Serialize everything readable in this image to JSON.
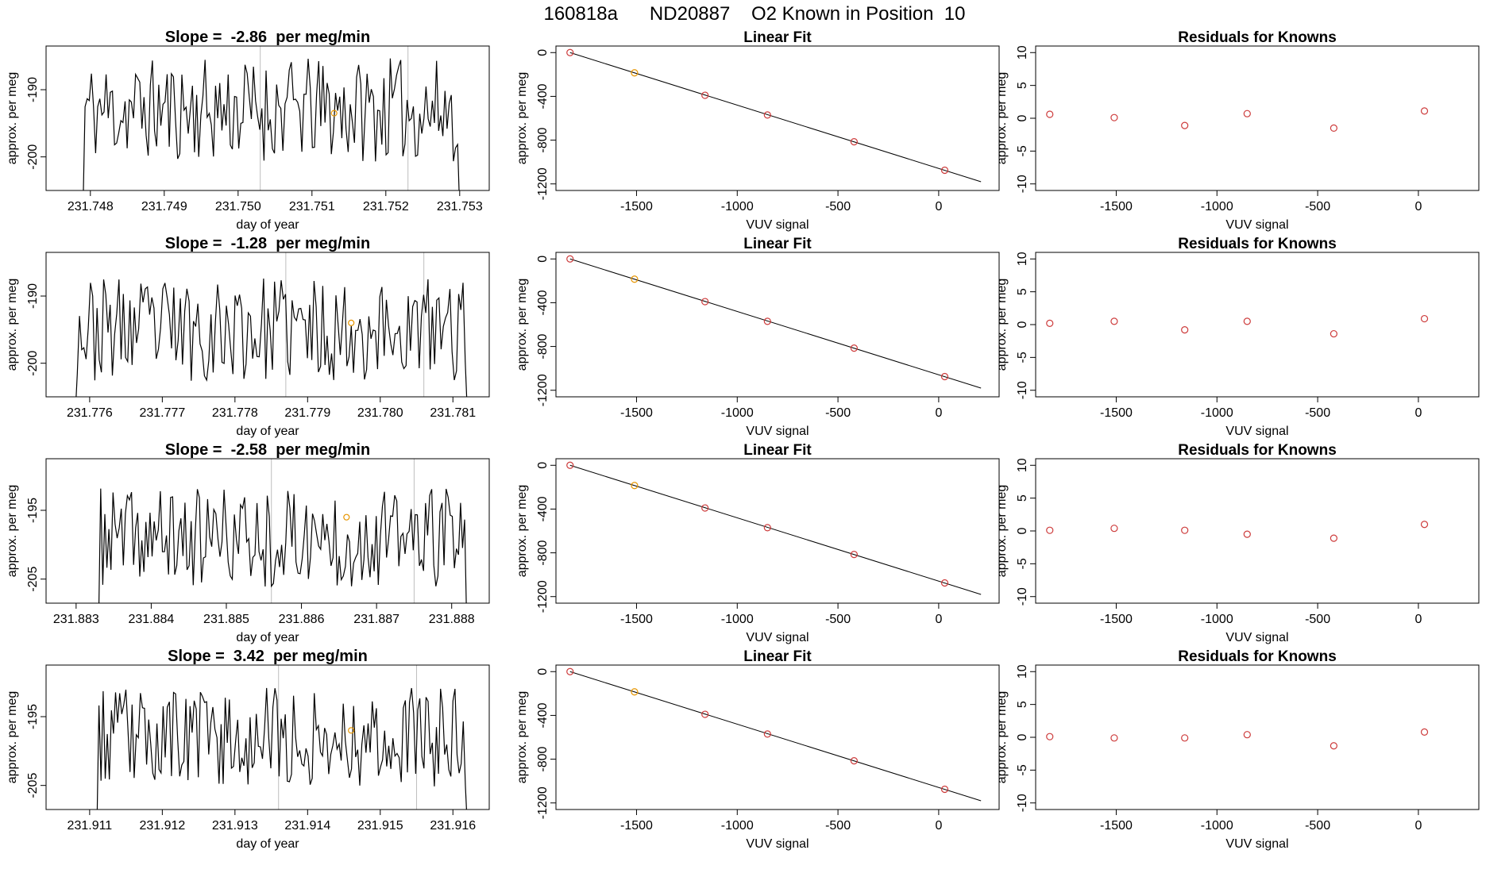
{
  "figure_title": "160818a      ND20887    O2 Known in Position  10",
  "colors": {
    "trace": "#000000",
    "frame": "#000000",
    "guide_line": "#bebebe",
    "fit_line": "#000000",
    "point_red": "#cd3b3b",
    "point_orange": "#e69500",
    "residual": "#cd3b3b"
  },
  "chart_data": [
    {
      "row": 1,
      "time_series": {
        "type": "line",
        "title": "Slope =  -2.86  per meg/min",
        "xlabel": "day of year",
        "ylabel": "approx. per meg",
        "xlim": [
          231.7474,
          231.7534
        ],
        "ylim": [
          -205,
          -183.5
        ],
        "xticks": [
          "231.748",
          "231.749",
          "231.750",
          "231.751",
          "231.752",
          "231.753"
        ],
        "yticks": [
          "-190",
          "-200"
        ],
        "x_start": 231.7479,
        "x_end": 231.753,
        "mean": -193,
        "amplitude": 4.8,
        "seed": 11,
        "vertical_lines": [
          231.7503,
          231.7523
        ],
        "marker": {
          "x": 231.7513,
          "y": -193.5
        }
      },
      "linear_fit": {
        "type": "scatter",
        "title": "Linear Fit",
        "xlabel": "VUV signal",
        "ylabel": "approx. per meg",
        "xlim": [
          -1900,
          300
        ],
        "ylim": [
          -1260,
          60
        ],
        "xticks": [
          "-1500",
          "-1000",
          "-500",
          "0"
        ],
        "yticks": [
          "0",
          "-400",
          "-800",
          "-1200"
        ],
        "fit_line": {
          "x": [
            -1830,
            210
          ],
          "y": [
            0,
            -1180
          ]
        },
        "points": [
          {
            "x": -1830,
            "y": 0
          },
          {
            "x": -1510,
            "y": -185
          },
          {
            "x": -1160,
            "y": -390
          },
          {
            "x": -850,
            "y": -570
          },
          {
            "x": -420,
            "y": -815
          },
          {
            "x": 30,
            "y": -1075
          }
        ],
        "highlight_index": 1
      },
      "residuals": {
        "type": "scatter",
        "title": "Residuals for Knowns",
        "xlabel": "VUV signal",
        "ylabel": "approx. per meg",
        "xlim": [
          -1900,
          300
        ],
        "ylim": [
          -11,
          11
        ],
        "xticks": [
          "-1500",
          "-1000",
          "-500",
          "0"
        ],
        "yticks": [
          "10",
          "5",
          "0",
          "-5",
          "-10"
        ],
        "x": [
          -1830,
          -1510,
          -1160,
          -850,
          -420,
          30
        ],
        "y": [
          0.6,
          0.1,
          -1.1,
          0.7,
          -1.5,
          1.1
        ]
      }
    },
    {
      "row": 2,
      "time_series": {
        "type": "line",
        "title": "Slope =  -1.28  per meg/min",
        "xlabel": "day of year",
        "ylabel": "approx. per meg",
        "xlim": [
          231.7754,
          231.7815
        ],
        "ylim": [
          -205,
          -183.5
        ],
        "xticks": [
          "231.776",
          "231.777",
          "231.778",
          "231.779",
          "231.780",
          "231.781"
        ],
        "yticks": [
          "-190",
          "-200"
        ],
        "x_start": 231.7758,
        "x_end": 231.7812,
        "mean": -195,
        "amplitude": 4.8,
        "seed": 23,
        "vertical_lines": [
          231.7787,
          231.7806
        ],
        "marker": {
          "x": 231.7796,
          "y": -194
        }
      },
      "linear_fit": {
        "type": "scatter",
        "title": "Linear Fit",
        "xlabel": "VUV signal",
        "ylabel": "approx. per meg",
        "xlim": [
          -1900,
          300
        ],
        "ylim": [
          -1260,
          60
        ],
        "xticks": [
          "-1500",
          "-1000",
          "-500",
          "0"
        ],
        "yticks": [
          "0",
          "-400",
          "-800",
          "-1200"
        ],
        "fit_line": {
          "x": [
            -1830,
            210
          ],
          "y": [
            0,
            -1180
          ]
        },
        "points": [
          {
            "x": -1830,
            "y": 0
          },
          {
            "x": -1510,
            "y": -185
          },
          {
            "x": -1160,
            "y": -390
          },
          {
            "x": -850,
            "y": -570
          },
          {
            "x": -420,
            "y": -815
          },
          {
            "x": 30,
            "y": -1075
          }
        ],
        "highlight_index": 1
      },
      "residuals": {
        "type": "scatter",
        "title": "Residuals for Knowns",
        "xlabel": "VUV signal",
        "ylabel": "approx. per meg",
        "xlim": [
          -1900,
          300
        ],
        "ylim": [
          -11,
          11
        ],
        "xticks": [
          "-1500",
          "-1000",
          "-500",
          "0"
        ],
        "yticks": [
          "10",
          "5",
          "0",
          "-5",
          "-10"
        ],
        "x": [
          -1830,
          -1510,
          -1160,
          -850,
          -420,
          30
        ],
        "y": [
          0.2,
          0.5,
          -0.8,
          0.5,
          -1.4,
          0.9
        ]
      }
    },
    {
      "row": 3,
      "time_series": {
        "type": "line",
        "title": "Slope =  -2.58  per meg/min",
        "xlabel": "day of year",
        "ylabel": "approx. per meg",
        "xlim": [
          231.8826,
          231.8885
        ],
        "ylim": [
          -208.5,
          -187.5
        ],
        "xticks": [
          "231.883",
          "231.884",
          "231.885",
          "231.886",
          "231.887",
          "231.888"
        ],
        "yticks": [
          "-195",
          "-205"
        ],
        "x_start": 231.8833,
        "x_end": 231.8882,
        "mean": -199,
        "amplitude": 4.5,
        "seed": 37,
        "vertical_lines": [
          231.8856,
          231.8875
        ],
        "marker": {
          "x": 231.8866,
          "y": -196
        }
      },
      "linear_fit": {
        "type": "scatter",
        "title": "Linear Fit",
        "xlabel": "VUV signal",
        "ylabel": "approx. per meg",
        "xlim": [
          -1900,
          300
        ],
        "ylim": [
          -1260,
          60
        ],
        "xticks": [
          "-1500",
          "-1000",
          "-500",
          "0"
        ],
        "yticks": [
          "0",
          "-400",
          "-800",
          "-1200"
        ],
        "fit_line": {
          "x": [
            -1830,
            210
          ],
          "y": [
            0,
            -1180
          ]
        },
        "points": [
          {
            "x": -1830,
            "y": 0
          },
          {
            "x": -1510,
            "y": -185
          },
          {
            "x": -1160,
            "y": -390
          },
          {
            "x": -850,
            "y": -570
          },
          {
            "x": -420,
            "y": -815
          },
          {
            "x": 30,
            "y": -1075
          }
        ],
        "highlight_index": 1
      },
      "residuals": {
        "type": "scatter",
        "title": "Residuals for Knowns",
        "xlabel": "VUV signal",
        "ylabel": "approx. per meg",
        "xlim": [
          -1900,
          300
        ],
        "ylim": [
          -11,
          11
        ],
        "xticks": [
          "-1500",
          "-1000",
          "-500",
          "0"
        ],
        "yticks": [
          "10",
          "5",
          "0",
          "-5",
          "-10"
        ],
        "x": [
          -1830,
          -1510,
          -1160,
          -850,
          -420,
          30
        ],
        "y": [
          0.1,
          0.4,
          0.1,
          -0.5,
          -1.1,
          1.0
        ]
      }
    },
    {
      "row": 4,
      "time_series": {
        "type": "line",
        "title": "Slope =  3.42  per meg/min",
        "xlabel": "day of year",
        "ylabel": "approx. per meg",
        "xlim": [
          231.9104,
          231.9165
        ],
        "ylim": [
          -208.5,
          -187.5
        ],
        "xticks": [
          "231.911",
          "231.912",
          "231.913",
          "231.914",
          "231.915",
          "231.916"
        ],
        "yticks": [
          "-195",
          "-205"
        ],
        "x_start": 231.9111,
        "x_end": 231.9162,
        "mean": -198,
        "amplitude": 4.5,
        "seed": 53,
        "vertical_lines": [
          231.9136,
          231.9155
        ],
        "marker": {
          "x": 231.9146,
          "y": -197
        }
      },
      "linear_fit": {
        "type": "scatter",
        "title": "Linear Fit",
        "xlabel": "VUV signal",
        "ylabel": "approx. per meg",
        "xlim": [
          -1900,
          300
        ],
        "ylim": [
          -1260,
          60
        ],
        "xticks": [
          "-1500",
          "-1000",
          "-500",
          "0"
        ],
        "yticks": [
          "0",
          "-400",
          "-800",
          "-1200"
        ],
        "fit_line": {
          "x": [
            -1830,
            210
          ],
          "y": [
            0,
            -1180
          ]
        },
        "points": [
          {
            "x": -1830,
            "y": 0
          },
          {
            "x": -1510,
            "y": -185
          },
          {
            "x": -1160,
            "y": -390
          },
          {
            "x": -850,
            "y": -570
          },
          {
            "x": -420,
            "y": -815
          },
          {
            "x": 30,
            "y": -1075
          }
        ],
        "highlight_index": 1
      },
      "residuals": {
        "type": "scatter",
        "title": "Residuals for Knowns",
        "xlabel": "VUV signal",
        "ylabel": "approx. per meg",
        "xlim": [
          -1900,
          300
        ],
        "ylim": [
          -11,
          11
        ],
        "xticks": [
          "-1500",
          "-1000",
          "-500",
          "0"
        ],
        "yticks": [
          "10",
          "5",
          "0",
          "-5",
          "-10"
        ],
        "x": [
          -1830,
          -1510,
          -1160,
          -850,
          -420,
          30
        ],
        "y": [
          0.1,
          -0.1,
          -0.1,
          0.4,
          -1.3,
          0.8
        ]
      }
    }
  ]
}
